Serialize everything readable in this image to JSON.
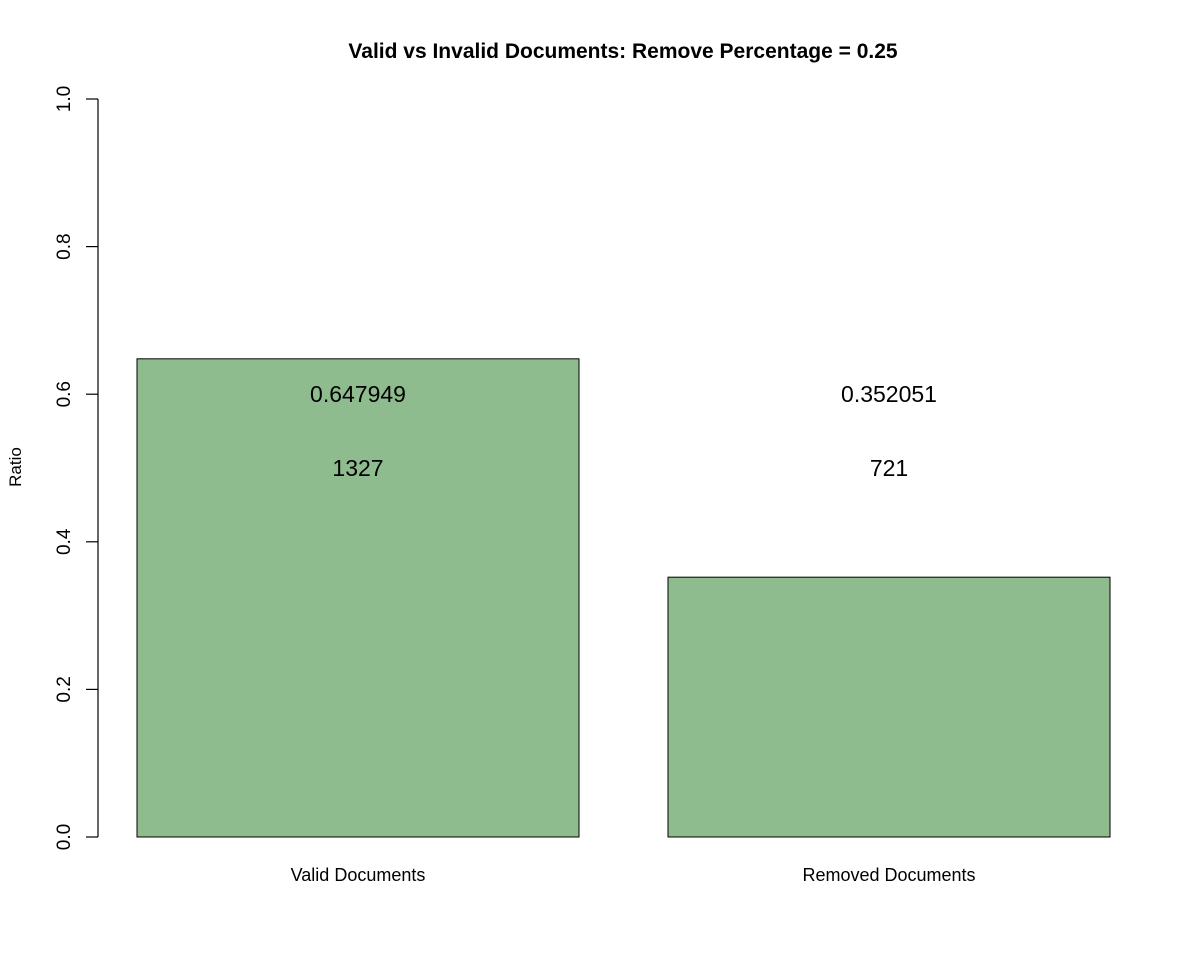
{
  "chart_data": {
    "type": "bar",
    "title": "Valid vs Invalid Documents: Remove Percentage =  0.25",
    "xlabel": "",
    "ylabel": "Ratio",
    "ylim": [
      0,
      1
    ],
    "yticks": [
      0,
      0.2,
      0.4,
      0.6,
      0.8,
      1
    ],
    "ytick_labels": [
      "0.0",
      "0.2",
      "0.4",
      "0.6",
      "0.8",
      "1.0"
    ],
    "categories": [
      "Valid Documents",
      "Removed Documents"
    ],
    "values": [
      0.647949,
      0.352051
    ],
    "value_labels": [
      "0.647949",
      "0.352051"
    ],
    "count_labels": [
      "1327",
      "721"
    ],
    "bar_color": "#8FBC8F",
    "bar_border_color": "#000000",
    "grid": false,
    "legend": "none"
  }
}
